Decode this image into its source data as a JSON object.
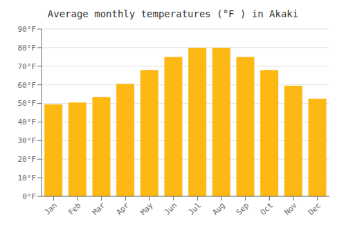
{
  "chart_data": {
    "type": "bar",
    "title": "Average monthly temperatures (°F ) in Akaki",
    "categories": [
      "Jan",
      "Feb",
      "Mar",
      "Apr",
      "May",
      "Jun",
      "Jul",
      "Aug",
      "Sep",
      "Oct",
      "Nov",
      "Dec"
    ],
    "values": [
      49.5,
      50.5,
      53.5,
      60.5,
      68.0,
      75.0,
      80.0,
      80.0,
      75.0,
      68.0,
      59.5,
      52.5
    ],
    "color": "#FDB813",
    "ylim": [
      0,
      90
    ],
    "yticks": [
      {
        "value": 0,
        "label": "0°F"
      },
      {
        "value": 10,
        "label": "10°F"
      },
      {
        "value": 20,
        "label": "20°F"
      },
      {
        "value": 30,
        "label": "30°F"
      },
      {
        "value": 40,
        "label": "40°F"
      },
      {
        "value": 50,
        "label": "50°F"
      },
      {
        "value": 60,
        "label": "60°F"
      },
      {
        "value": 70,
        "label": "70°F"
      },
      {
        "value": 80,
        "label": "80°F"
      },
      {
        "value": 90,
        "label": "90°F"
      }
    ],
    "grid": true
  }
}
